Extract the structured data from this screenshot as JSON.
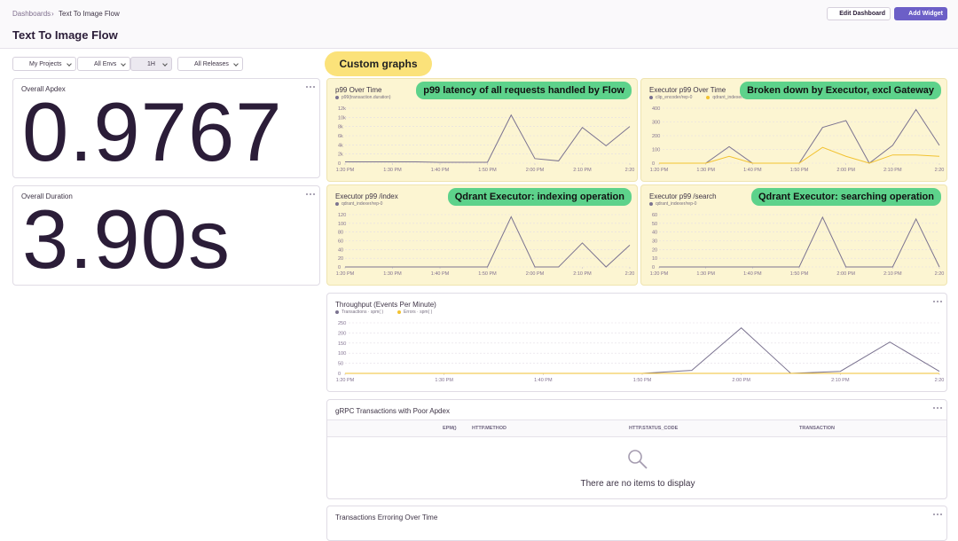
{
  "header": {
    "breadcrumb": [
      "Dashboards",
      "Text To Image Flow"
    ],
    "title": "Text To Image Flow",
    "buttons": [
      "Edit Dashboard",
      "Add Widget"
    ]
  },
  "filters": [
    "My Projects",
    "All Envs",
    "1H",
    "All Releases"
  ],
  "annotation": "Custom graphs",
  "big_numbers": [
    {
      "title": "Overall Apdex",
      "value": "0.9767"
    },
    {
      "title": "Overall Duration",
      "value": "3.90s"
    }
  ],
  "chart_data": [
    {
      "type": "line",
      "title": "p99 Over Time",
      "annotation": "p99 latency of all requests handled by Flow",
      "categories": [
        "1:20 PM",
        null,
        "1:30 PM",
        null,
        "1:40 PM",
        null,
        "1:50 PM",
        null,
        "2:00 PM",
        null,
        "2:10 PM",
        null,
        "2:20"
      ],
      "series": [
        {
          "name": "p99(transaction.duration)",
          "color": "#7b7390",
          "values": [
            300,
            300,
            300,
            300,
            200,
            200,
            200,
            10500,
            1000,
            500,
            7800,
            3800,
            8000
          ]
        }
      ],
      "ylim": [
        0,
        12000
      ],
      "yticks": [
        0,
        {
          "value": 2000,
          "label": "2k"
        },
        {
          "value": 4000,
          "label": "4k"
        },
        {
          "value": 6000,
          "label": "6k"
        },
        {
          "value": 8000,
          "label": "8k"
        },
        {
          "value": 10000,
          "label": "10k"
        },
        {
          "value": 12000,
          "label": "12k"
        }
      ],
      "grid": true
    },
    {
      "type": "line",
      "title": "Executor p99 Over Time",
      "annotation": "Broken down by Executor, excl Gateway",
      "categories": [
        "1:20 PM",
        null,
        "1:30 PM",
        null,
        "1:40 PM",
        null,
        "1:50 PM",
        null,
        "2:00 PM",
        null,
        "2:10 PM",
        null,
        "2:20"
      ],
      "series": [
        {
          "name": "clip_encoder/rep-0",
          "color": "#7b7390",
          "values": [
            0,
            0,
            0,
            120,
            0,
            0,
            0,
            260,
            310,
            0,
            130,
            390,
            130
          ]
        },
        {
          "name": "qdrant_indexer/rep-0",
          "color": "#f2c230",
          "values": [
            0,
            0,
            0,
            50,
            0,
            0,
            0,
            115,
            50,
            0,
            60,
            60,
            50
          ]
        }
      ],
      "ylim": [
        0,
        400
      ],
      "yticks": [
        0,
        100,
        200,
        300,
        400
      ],
      "grid": true
    },
    {
      "type": "line",
      "title": "Executor p99 /index",
      "annotation": "Qdrant Executor: indexing operation",
      "categories": [
        "1:20 PM",
        null,
        "1:30 PM",
        null,
        "1:40 PM",
        null,
        "1:50 PM",
        null,
        "2:00 PM",
        null,
        "2:10 PM",
        null,
        "2:20"
      ],
      "series": [
        {
          "name": "qdrant_indexer/rep-0",
          "color": "#7b7390",
          "values": [
            0,
            0,
            0,
            0,
            0,
            0,
            0,
            115,
            0,
            0,
            55,
            0,
            50
          ]
        }
      ],
      "ylim": [
        0,
        120
      ],
      "yticks": [
        0,
        20,
        40,
        60,
        80,
        100,
        120
      ],
      "grid": true
    },
    {
      "type": "line",
      "title": "Executor p99 /search",
      "annotation": "Qdrant Executor: searching operation",
      "categories": [
        "1:20 PM",
        null,
        "1:30 PM",
        null,
        "1:40 PM",
        null,
        "1:50 PM",
        null,
        "2:00 PM",
        null,
        "2:10 PM",
        null,
        "2:20"
      ],
      "series": [
        {
          "name": "qdrant_indexer/rep-0",
          "color": "#7b7390",
          "values": [
            0,
            0,
            0,
            0,
            0,
            0,
            0,
            57,
            0,
            0,
            0,
            55,
            0
          ]
        }
      ],
      "ylim": [
        0,
        60
      ],
      "yticks": [
        0,
        10,
        20,
        30,
        40,
        50,
        60
      ],
      "grid": true
    },
    {
      "type": "line",
      "title": "Throughput (Events Per Minute)",
      "categories": [
        "1:20 PM",
        null,
        "1:30 PM",
        null,
        "1:40 PM",
        null,
        "1:50 PM",
        null,
        "2:00 PM",
        null,
        "2:10 PM",
        null,
        "2:20"
      ],
      "series": [
        {
          "name": "Transactions · spm( )",
          "color": "#7b7390",
          "values": [
            0,
            0,
            0,
            0,
            0,
            0,
            0,
            15,
            225,
            0,
            10,
            155,
            10
          ]
        },
        {
          "name": "Errors · spm( )",
          "color": "#f2c230",
          "values": [
            0,
            0,
            0,
            0,
            0,
            0,
            0,
            0,
            0,
            0,
            0,
            0,
            0
          ]
        }
      ],
      "ylim": [
        0,
        250
      ],
      "yticks": [
        0,
        50,
        100,
        150,
        200,
        250
      ],
      "grid": true
    }
  ],
  "table": {
    "title": "gRPC Transactions with Poor Apdex",
    "columns": [
      "EPM()",
      "HTTP.METHOD",
      "HTTP.STATUS_CODE",
      "TRANSACTION"
    ],
    "empty": "There are no items to display"
  },
  "last_widget": {
    "title": "Transactions Erroring Over Time"
  }
}
